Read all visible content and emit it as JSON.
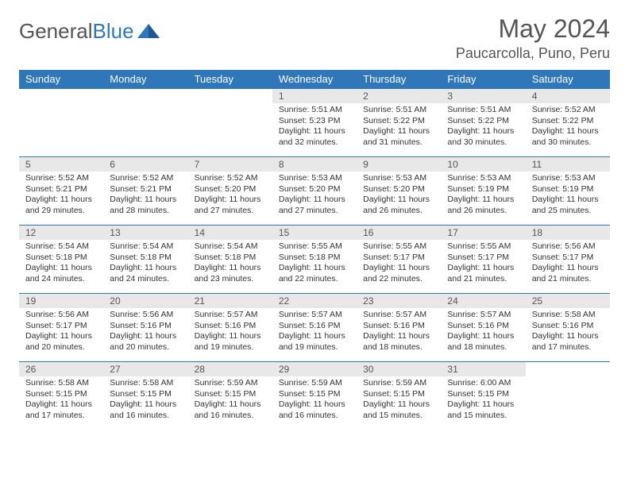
{
  "logo": {
    "text1": "General",
    "text2": "Blue"
  },
  "title": "May 2024",
  "location": "Paucarcolla, Puno, Peru",
  "colors": {
    "header_bg": "#2f77b9",
    "header_text": "#ffffff",
    "daynum_bg": "#e8e8e8",
    "border": "#2f77b9",
    "text": "#333333",
    "title_text": "#555555"
  },
  "weekdays": [
    "Sunday",
    "Monday",
    "Tuesday",
    "Wednesday",
    "Thursday",
    "Friday",
    "Saturday"
  ],
  "weeks": [
    [
      {
        "n": "",
        "sr": "",
        "ss": "",
        "dl": ""
      },
      {
        "n": "",
        "sr": "",
        "ss": "",
        "dl": ""
      },
      {
        "n": "",
        "sr": "",
        "ss": "",
        "dl": ""
      },
      {
        "n": "1",
        "sr": "Sunrise: 5:51 AM",
        "ss": "Sunset: 5:23 PM",
        "dl": "Daylight: 11 hours and 32 minutes."
      },
      {
        "n": "2",
        "sr": "Sunrise: 5:51 AM",
        "ss": "Sunset: 5:22 PM",
        "dl": "Daylight: 11 hours and 31 minutes."
      },
      {
        "n": "3",
        "sr": "Sunrise: 5:51 AM",
        "ss": "Sunset: 5:22 PM",
        "dl": "Daylight: 11 hours and 30 minutes."
      },
      {
        "n": "4",
        "sr": "Sunrise: 5:52 AM",
        "ss": "Sunset: 5:22 PM",
        "dl": "Daylight: 11 hours and 30 minutes."
      }
    ],
    [
      {
        "n": "5",
        "sr": "Sunrise: 5:52 AM",
        "ss": "Sunset: 5:21 PM",
        "dl": "Daylight: 11 hours and 29 minutes."
      },
      {
        "n": "6",
        "sr": "Sunrise: 5:52 AM",
        "ss": "Sunset: 5:21 PM",
        "dl": "Daylight: 11 hours and 28 minutes."
      },
      {
        "n": "7",
        "sr": "Sunrise: 5:52 AM",
        "ss": "Sunset: 5:20 PM",
        "dl": "Daylight: 11 hours and 27 minutes."
      },
      {
        "n": "8",
        "sr": "Sunrise: 5:53 AM",
        "ss": "Sunset: 5:20 PM",
        "dl": "Daylight: 11 hours and 27 minutes."
      },
      {
        "n": "9",
        "sr": "Sunrise: 5:53 AM",
        "ss": "Sunset: 5:20 PM",
        "dl": "Daylight: 11 hours and 26 minutes."
      },
      {
        "n": "10",
        "sr": "Sunrise: 5:53 AM",
        "ss": "Sunset: 5:19 PM",
        "dl": "Daylight: 11 hours and 26 minutes."
      },
      {
        "n": "11",
        "sr": "Sunrise: 5:53 AM",
        "ss": "Sunset: 5:19 PM",
        "dl": "Daylight: 11 hours and 25 minutes."
      }
    ],
    [
      {
        "n": "12",
        "sr": "Sunrise: 5:54 AM",
        "ss": "Sunset: 5:18 PM",
        "dl": "Daylight: 11 hours and 24 minutes."
      },
      {
        "n": "13",
        "sr": "Sunrise: 5:54 AM",
        "ss": "Sunset: 5:18 PM",
        "dl": "Daylight: 11 hours and 24 minutes."
      },
      {
        "n": "14",
        "sr": "Sunrise: 5:54 AM",
        "ss": "Sunset: 5:18 PM",
        "dl": "Daylight: 11 hours and 23 minutes."
      },
      {
        "n": "15",
        "sr": "Sunrise: 5:55 AM",
        "ss": "Sunset: 5:18 PM",
        "dl": "Daylight: 11 hours and 22 minutes."
      },
      {
        "n": "16",
        "sr": "Sunrise: 5:55 AM",
        "ss": "Sunset: 5:17 PM",
        "dl": "Daylight: 11 hours and 22 minutes."
      },
      {
        "n": "17",
        "sr": "Sunrise: 5:55 AM",
        "ss": "Sunset: 5:17 PM",
        "dl": "Daylight: 11 hours and 21 minutes."
      },
      {
        "n": "18",
        "sr": "Sunrise: 5:56 AM",
        "ss": "Sunset: 5:17 PM",
        "dl": "Daylight: 11 hours and 21 minutes."
      }
    ],
    [
      {
        "n": "19",
        "sr": "Sunrise: 5:56 AM",
        "ss": "Sunset: 5:17 PM",
        "dl": "Daylight: 11 hours and 20 minutes."
      },
      {
        "n": "20",
        "sr": "Sunrise: 5:56 AM",
        "ss": "Sunset: 5:16 PM",
        "dl": "Daylight: 11 hours and 20 minutes."
      },
      {
        "n": "21",
        "sr": "Sunrise: 5:57 AM",
        "ss": "Sunset: 5:16 PM",
        "dl": "Daylight: 11 hours and 19 minutes."
      },
      {
        "n": "22",
        "sr": "Sunrise: 5:57 AM",
        "ss": "Sunset: 5:16 PM",
        "dl": "Daylight: 11 hours and 19 minutes."
      },
      {
        "n": "23",
        "sr": "Sunrise: 5:57 AM",
        "ss": "Sunset: 5:16 PM",
        "dl": "Daylight: 11 hours and 18 minutes."
      },
      {
        "n": "24",
        "sr": "Sunrise: 5:57 AM",
        "ss": "Sunset: 5:16 PM",
        "dl": "Daylight: 11 hours and 18 minutes."
      },
      {
        "n": "25",
        "sr": "Sunrise: 5:58 AM",
        "ss": "Sunset: 5:16 PM",
        "dl": "Daylight: 11 hours and 17 minutes."
      }
    ],
    [
      {
        "n": "26",
        "sr": "Sunrise: 5:58 AM",
        "ss": "Sunset: 5:15 PM",
        "dl": "Daylight: 11 hours and 17 minutes."
      },
      {
        "n": "27",
        "sr": "Sunrise: 5:58 AM",
        "ss": "Sunset: 5:15 PM",
        "dl": "Daylight: 11 hours and 16 minutes."
      },
      {
        "n": "28",
        "sr": "Sunrise: 5:59 AM",
        "ss": "Sunset: 5:15 PM",
        "dl": "Daylight: 11 hours and 16 minutes."
      },
      {
        "n": "29",
        "sr": "Sunrise: 5:59 AM",
        "ss": "Sunset: 5:15 PM",
        "dl": "Daylight: 11 hours and 16 minutes."
      },
      {
        "n": "30",
        "sr": "Sunrise: 5:59 AM",
        "ss": "Sunset: 5:15 PM",
        "dl": "Daylight: 11 hours and 15 minutes."
      },
      {
        "n": "31",
        "sr": "Sunrise: 6:00 AM",
        "ss": "Sunset: 5:15 PM",
        "dl": "Daylight: 11 hours and 15 minutes."
      },
      {
        "n": "",
        "sr": "",
        "ss": "",
        "dl": ""
      }
    ]
  ]
}
